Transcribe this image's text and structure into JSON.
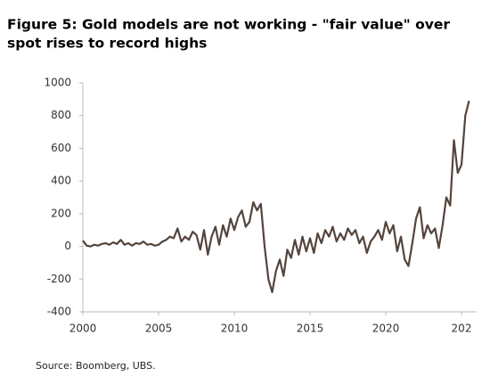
{
  "chart_data": {
    "type": "line",
    "title": [
      "Figure 5: Gold models are not working - \"fair value\" over",
      "spot rises to record highs"
    ],
    "source": "Source: Boomberg, UBS.",
    "color": "#54443b",
    "x": [
      2000,
      2000.25,
      2000.5,
      2000.75,
      2001,
      2001.25,
      2001.5,
      2001.75,
      2002,
      2002.25,
      2002.5,
      2002.75,
      2003,
      2003.25,
      2003.5,
      2003.75,
      2004,
      2004.25,
      2004.5,
      2004.75,
      2005,
      2005.25,
      2005.5,
      2005.75,
      2006,
      2006.25,
      2006.5,
      2006.75,
      2007,
      2007.25,
      2007.5,
      2007.75,
      2008,
      2008.25,
      2008.5,
      2008.75,
      2009,
      2009.25,
      2009.5,
      2009.75,
      2010,
      2010.25,
      2010.5,
      2010.75,
      2011,
      2011.25,
      2011.5,
      2011.75,
      2012,
      2012.25,
      2012.5,
      2012.75,
      2013,
      2013.25,
      2013.5,
      2013.75,
      2014,
      2014.25,
      2014.5,
      2014.75,
      2015,
      2015.25,
      2015.5,
      2015.75,
      2016,
      2016.25,
      2016.5,
      2016.75,
      2017,
      2017.25,
      2017.5,
      2017.75,
      2018,
      2018.25,
      2018.5,
      2018.75,
      2019,
      2019.25,
      2019.5,
      2019.75,
      2020,
      2020.25,
      2020.5,
      2020.75,
      2021,
      2021.25,
      2021.5,
      2021.75,
      2022,
      2022.25,
      2022.5,
      2022.75,
      2023,
      2023.25,
      2023.5,
      2023.75,
      2024,
      2024.25,
      2024.5,
      2024.75,
      2025,
      2025.25,
      2025.5
    ],
    "values": [
      35,
      5,
      0,
      10,
      5,
      15,
      20,
      10,
      25,
      15,
      40,
      10,
      20,
      5,
      20,
      15,
      30,
      10,
      15,
      5,
      10,
      30,
      40,
      60,
      50,
      110,
      30,
      60,
      40,
      90,
      70,
      -20,
      100,
      -50,
      60,
      120,
      10,
      130,
      60,
      170,
      100,
      180,
      220,
      120,
      150,
      270,
      220,
      260,
      0,
      -200,
      -280,
      -150,
      -80,
      -180,
      -20,
      -70,
      40,
      -50,
      60,
      -30,
      50,
      -40,
      80,
      20,
      100,
      60,
      120,
      30,
      80,
      40,
      110,
      70,
      100,
      20,
      60,
      -40,
      30,
      60,
      100,
      40,
      150,
      80,
      130,
      -30,
      60,
      -80,
      -120,
      20,
      170,
      240,
      50,
      130,
      80,
      110,
      -10,
      130,
      300,
      250,
      650,
      450,
      500,
      800,
      890
    ],
    "xlim": [
      2000,
      2026
    ],
    "xticks": [
      2000,
      2005,
      2010,
      2015,
      2020,
      {
        "value": 2025,
        "label": "202"
      }
    ],
    "ylim": [
      -400,
      1000
    ],
    "yticks": [
      -400,
      -200,
      0,
      200,
      400,
      600,
      800,
      1000
    ]
  }
}
